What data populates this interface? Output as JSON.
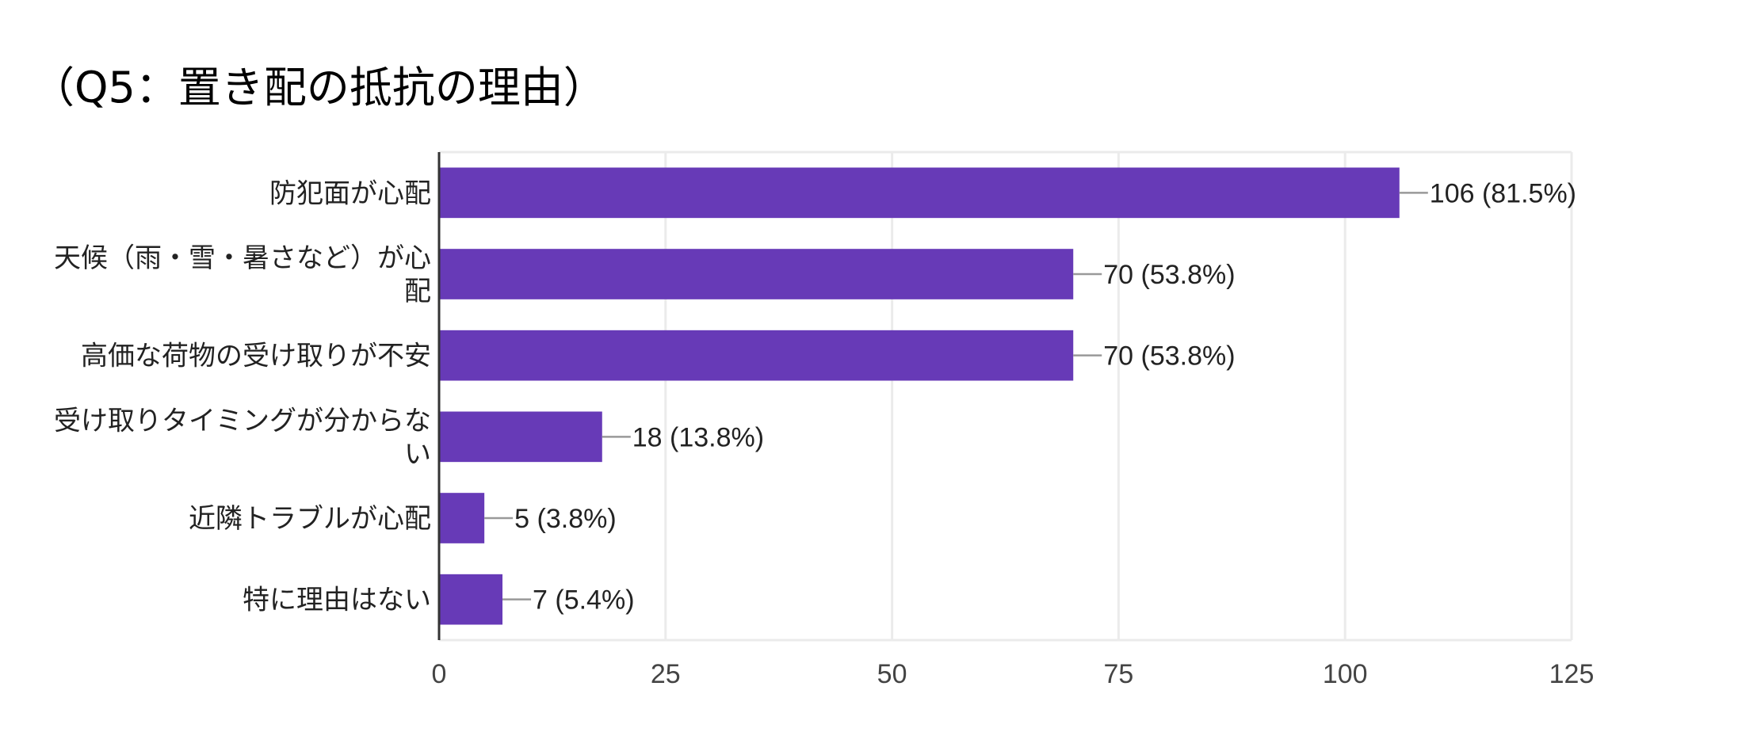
{
  "chart_data": {
    "type": "bar",
    "orientation": "horizontal",
    "title": "（Q5：置き配の抵抗の理由）",
    "categories": [
      "防犯面が心配",
      "天候（雨・雪・暑さなど）が心配",
      "高価な荷物の受け取りが不安",
      "受け取りタイミングが分からない",
      "近隣トラブルが心配",
      "特に理由はない"
    ],
    "category_lines": [
      [
        "防犯面が心配"
      ],
      [
        "天候（雨・雪・暑さなど）が心",
        "配"
      ],
      [
        "高価な荷物の受け取りが不安"
      ],
      [
        "受け取りタイミングが分からな",
        "い"
      ],
      [
        "近隣トラブルが心配"
      ],
      [
        "特に理由はない"
      ]
    ],
    "values": [
      106,
      70,
      70,
      18,
      5,
      7
    ],
    "data_labels": [
      "106 (81.5%)",
      "70 (53.8%)",
      "70 (53.8%)",
      "18 (13.8%)",
      "5 (3.8%)",
      "7 (5.4%)"
    ],
    "xlim": [
      0,
      125
    ],
    "xticks": [
      0,
      25,
      50,
      75,
      100,
      125
    ],
    "xlabel": "",
    "ylabel": "",
    "grid": true,
    "legend": "none",
    "bar_color": "#673ab7",
    "grid_color": "#ebebeb",
    "axis_color": "#333333",
    "leader_color": "#999999",
    "label_color": "#222222",
    "tick_color": "#444444"
  }
}
